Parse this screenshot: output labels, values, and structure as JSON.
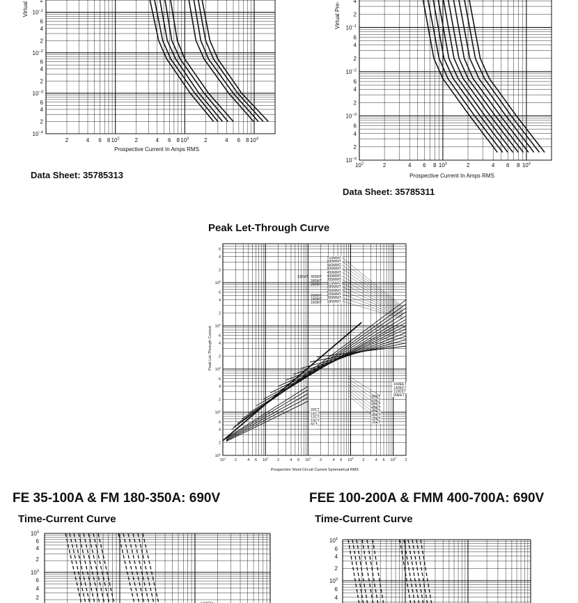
{
  "page": {
    "top_left": {
      "data_sheet": "Data Sheet: 35785313"
    },
    "top_right": {
      "data_sheet": "Data Sheet: 35785311"
    },
    "bottom_left": {
      "heading": "FE 35-100A & FM 180-350A: 690V",
      "subheading": "Time-Current Curve"
    },
    "bottom_right": {
      "heading": "FEE 100-200A & FMM 400-700A: 690V",
      "subheading": "Time-Current Curve"
    }
  },
  "chart_data": [
    {
      "id": "top_left_time_current",
      "type": "line",
      "xlabel": "Prospective Current In Amps RMS",
      "ylabel": "Virtual",
      "x_scale": "log",
      "y_scale": "log",
      "xlim": [
        10,
        20000
      ],
      "ylim": [
        0.0001,
        0.3
      ],
      "x_ticks": [
        "2",
        "4",
        "6",
        "8",
        "10^2",
        "2",
        "4",
        "6",
        "8",
        "10^3",
        "2",
        "4",
        "6",
        "8",
        "10^4"
      ],
      "y_ticks": [
        "2",
        "10^-1",
        "6",
        "4",
        "2",
        "10^-2",
        "6",
        "4",
        "2",
        "10^-3",
        "6",
        "4",
        "2",
        "10^-4"
      ],
      "grid": true,
      "series": [
        {
          "x": [
            300,
            420,
            550,
            1200,
            2600
          ],
          "y": [
            0.3,
            0.02,
            0.007,
            0.001,
            0.0002
          ]
        },
        {
          "x": [
            350,
            480,
            630,
            1400,
            3000
          ],
          "y": [
            0.3,
            0.02,
            0.007,
            0.001,
            0.0002
          ]
        },
        {
          "x": [
            420,
            560,
            740,
            1600,
            3500
          ],
          "y": [
            0.3,
            0.02,
            0.007,
            0.001,
            0.0002
          ]
        },
        {
          "x": [
            500,
            650,
            860,
            1900,
            4200
          ],
          "y": [
            0.3,
            0.02,
            0.007,
            0.001,
            0.0002
          ]
        },
        {
          "x": [
            600,
            780,
            1000,
            2200,
            5000
          ],
          "y": [
            0.3,
            0.02,
            0.007,
            0.001,
            0.0002
          ]
        },
        {
          "x": [
            1100,
            1450,
            1900,
            4300,
            9800
          ],
          "y": [
            0.3,
            0.02,
            0.007,
            0.001,
            0.0002
          ]
        },
        {
          "x": [
            1300,
            1700,
            2200,
            5000,
            11500
          ],
          "y": [
            0.3,
            0.02,
            0.007,
            0.001,
            0.0002
          ]
        },
        {
          "x": [
            1500,
            2000,
            2600,
            5800,
            13500
          ],
          "y": [
            0.3,
            0.02,
            0.007,
            0.001,
            0.0002
          ]
        },
        {
          "x": [
            1700,
            2300,
            3000,
            6600,
            16000
          ],
          "y": [
            0.3,
            0.02,
            0.007,
            0.001,
            0.0002
          ]
        }
      ]
    },
    {
      "id": "top_right_time_current",
      "type": "line",
      "xlabel": "Prospective Current In Amps RMS",
      "ylabel": "Virtual Pre-",
      "x_scale": "log",
      "y_scale": "log",
      "xlim": [
        100,
        20000
      ],
      "ylim": [
        0.0001,
        0.6
      ],
      "x_ticks": [
        "10^2",
        "2",
        "4",
        "6",
        "8",
        "10^3",
        "2",
        "4",
        "6",
        "8",
        "10^4"
      ],
      "y_ticks": [
        "6",
        "4",
        "2",
        "10^-1",
        "6",
        "4",
        "2",
        "10^-2",
        "6",
        "4",
        "2",
        "10^-3",
        "6",
        "4",
        "2",
        "10^-4"
      ],
      "grid": true,
      "series": [
        {
          "x": [
            560,
            780,
            1000,
            2100,
            4500
          ],
          "y": [
            0.6,
            0.02,
            0.007,
            0.001,
            0.00015
          ]
        },
        {
          "x": [
            640,
            900,
            1150,
            2400,
            5200
          ],
          "y": [
            0.6,
            0.02,
            0.007,
            0.001,
            0.00015
          ]
        },
        {
          "x": [
            740,
            1030,
            1330,
            2800,
            6000
          ],
          "y": [
            0.6,
            0.02,
            0.007,
            0.001,
            0.00015
          ]
        },
        {
          "x": [
            850,
            1180,
            1520,
            3200,
            6900
          ],
          "y": [
            0.6,
            0.02,
            0.007,
            0.001,
            0.00015
          ]
        },
        {
          "x": [
            980,
            1360,
            1750,
            3700,
            8000
          ],
          "y": [
            0.6,
            0.02,
            0.007,
            0.001,
            0.00015
          ]
        },
        {
          "x": [
            1120,
            1560,
            2000,
            4250,
            9200
          ],
          "y": [
            0.6,
            0.02,
            0.007,
            0.001,
            0.00015
          ]
        },
        {
          "x": [
            1300,
            1800,
            2300,
            4900,
            10600
          ],
          "y": [
            0.6,
            0.02,
            0.007,
            0.001,
            0.00015
          ]
        },
        {
          "x": [
            1500,
            2100,
            2700,
            5700,
            12300
          ],
          "y": [
            0.6,
            0.02,
            0.007,
            0.001,
            0.00015
          ]
        },
        {
          "x": [
            1750,
            2450,
            3150,
            6600,
            14300
          ],
          "y": [
            0.6,
            0.02,
            0.007,
            0.001,
            0.00015
          ]
        },
        {
          "x": [
            2000,
            2800,
            3600,
            7600,
            16500
          ],
          "y": [
            0.6,
            0.02,
            0.007,
            0.001,
            0.00015
          ]
        }
      ]
    },
    {
      "id": "peak_let_through",
      "type": "line",
      "title": "Peak Let-Through Curve",
      "xlabel": "Prospective Short-Circuit Current Symmetrical RMS",
      "ylabel": "Peak Let-Through Current",
      "x_scale": "log",
      "y_scale": "log",
      "xlim": [
        10,
        200000
      ],
      "ylim": [
        10,
        800000
      ],
      "x_ticks": [
        "10^1",
        "2",
        "4",
        "6",
        "10^2",
        "2",
        "4",
        "6",
        "10^3",
        "2",
        "4",
        "6",
        "10^4",
        "2",
        "4",
        "6",
        "10^5",
        "2"
      ],
      "y_ticks": [
        "6",
        "4",
        "2",
        "10^5",
        "6",
        "4",
        "2",
        "10^4",
        "6",
        "4",
        "2",
        "10^3",
        "6",
        "4",
        "2",
        "10^2",
        "6",
        "4",
        "2",
        "10^1"
      ],
      "grid": true,
      "labels_top": [
        "710MMT",
        "630MMT",
        "560MMT",
        "500MMT",
        "450MMT",
        "400MMT",
        "355MMT",
        "315MMT",
        "280MMT",
        "250MMT",
        "225MMT",
        "200MMT",
        "180MMT"
      ],
      "labels_top_left": [
        "315MT",
        "355MT",
        "280MT",
        "250MT",
        "200MT",
        "180MT",
        "160MT"
      ],
      "labels_right": [
        "160EET",
        "140EET",
        "110EET",
        "90EET"
      ],
      "labels_mid": [
        "80ET",
        "63ET",
        "56ET",
        "45ET",
        "40ET",
        "35ET",
        "32ET",
        "25ET"
      ],
      "labels_left": [
        "20CT",
        "16CT",
        "12CT",
        "10CT",
        "6CT"
      ],
      "series": [
        {
          "name": "cut-off",
          "x": [
            10,
            18000
          ],
          "y": [
            22,
            12000
          ]
        },
        {
          "x": [
            16,
            200000
          ],
          "y": [
            40,
            40000
          ]
        },
        {
          "x": [
            18,
            200000
          ],
          "y": [
            45,
            32000
          ]
        },
        {
          "x": [
            22,
            200000
          ],
          "y": [
            55,
            26000
          ]
        },
        {
          "x": [
            28,
            200000
          ],
          "y": [
            70,
            21000
          ]
        },
        {
          "x": [
            40,
            200000
          ],
          "y": [
            95,
            17000
          ]
        },
        {
          "x": [
            60,
            200000
          ],
          "y": [
            140,
            14000
          ]
        },
        {
          "x": [
            90,
            200000
          ],
          "y": [
            200,
            12000
          ]
        },
        {
          "x": [
            130,
            200000
          ],
          "y": [
            280,
            10000
          ]
        },
        {
          "x": [
            200,
            200000
          ],
          "y": [
            400,
            8500
          ]
        },
        {
          "x": [
            300,
            200000
          ],
          "y": [
            550,
            7000
          ]
        },
        {
          "x": [
            450,
            200000
          ],
          "y": [
            750,
            5800
          ]
        },
        {
          "x": [
            700,
            200000
          ],
          "y": [
            1050,
            4800
          ]
        },
        {
          "x": [
            1100,
            200000
          ],
          "y": [
            1450,
            4000
          ]
        },
        {
          "x": [
            1600,
            200000
          ],
          "y": [
            1900,
            3400
          ]
        },
        {
          "x": [
            12,
            1000
          ],
          "y": [
            25,
            400
          ]
        },
        {
          "x": [
            12,
            1000
          ],
          "y": [
            24,
            330
          ]
        },
        {
          "x": [
            12,
            1000
          ],
          "y": [
            23,
            270
          ]
        },
        {
          "x": [
            12,
            1000
          ],
          "y": [
            22,
            220
          ]
        },
        {
          "x": [
            12,
            1000
          ],
          "y": [
            21,
            180
          ]
        }
      ]
    },
    {
      "id": "bottom_left_time_current",
      "type": "line",
      "y_scale": "log",
      "y_ticks": [
        "10^4",
        "6",
        "4",
        "2",
        "10^3",
        "6",
        "4",
        "2"
      ],
      "grid": true,
      "partial_label": "100FM",
      "series": []
    },
    {
      "id": "bottom_right_time_current",
      "type": "line",
      "y_scale": "log",
      "y_ticks": [
        "10^4",
        "6",
        "4",
        "2",
        "10^3",
        "6",
        "4"
      ],
      "grid": true,
      "series": []
    }
  ]
}
